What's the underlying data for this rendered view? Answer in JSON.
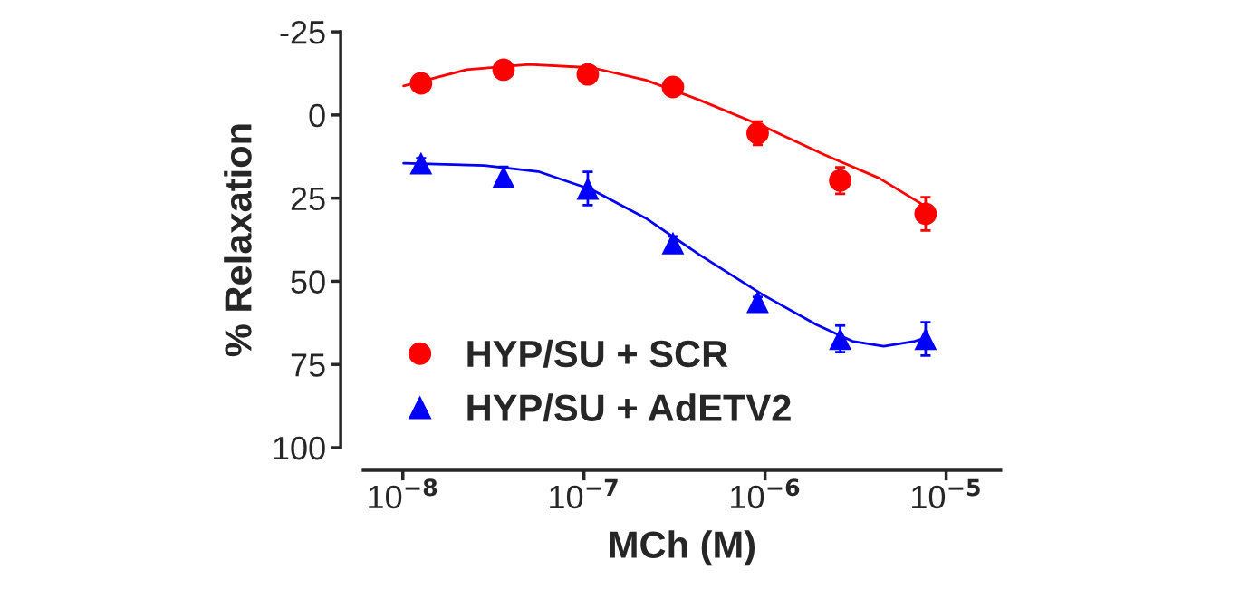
{
  "chart_data": {
    "type": "scatter",
    "xlabel": "MCh (M)",
    "ylabel": "% Relaxation",
    "log": "x",
    "xlim": [
      6.05e-09,
      2e-05
    ],
    "xticks": [
      {
        "value": 1e-08,
        "label": "10$^{−8}$"
      },
      {
        "value": 1e-07,
        "label": "10$^{−7}$"
      },
      {
        "value": 1e-06,
        "label": "10$^{−6}$"
      },
      {
        "value": 1e-05,
        "label": "10$^{−5}$"
      }
    ],
    "ylim": [
      100,
      -25
    ],
    "yticks": [
      -25,
      0,
      25,
      50,
      75,
      100
    ],
    "grid": false,
    "legend": "bottom left",
    "series": [
      {
        "name": "HYP/SU + SCR",
        "color": "#ff0000",
        "marker": "circle",
        "x": [
          1.26e-08,
          3.6e-08,
          1.05e-07,
          3.1e-07,
          9.1e-07,
          2.6e-06,
          7.7e-06
        ],
        "values": [
          -9.5,
          -13.6,
          -12.2,
          -8.4,
          5.5,
          19.7,
          29.7
        ],
        "errors": [
          null,
          null,
          null,
          null,
          3.5,
          4,
          5
        ]
      },
      {
        "name": "HYP/SU + AdETV2",
        "color": "#0000ff",
        "marker": "triangle",
        "x": [
          1.26e-08,
          3.6e-08,
          1.05e-07,
          3.1e-07,
          9.1e-07,
          2.6e-06,
          7.7e-06
        ],
        "values": [
          14.5,
          18.6,
          22.1,
          38.5,
          56.2,
          67.3,
          67.3
        ],
        "errors": [
          1.5,
          3,
          5,
          2,
          1.5,
          4,
          5
        ]
      },
      {
        "type": "line",
        "color": "#ff0000",
        "x": [
          1.01e-08,
          2.25e-08,
          4.98e-08,
          1.11e-07,
          2.19e-07,
          4.34e-07,
          9.68e-07,
          2.14e-06,
          4.27e-06,
          7.7e-06
        ],
        "values": [
          -8.7,
          -13.6,
          -15.2,
          -14.2,
          -10.5,
          -4.5,
          3.3,
          12,
          19,
          27.5
        ]
      },
      {
        "type": "line",
        "color": "#0000ff",
        "x": [
          1.01e-08,
          2.82e-08,
          5.6e-08,
          1.11e-07,
          2.19e-07,
          4.34e-07,
          9.68e-07,
          1.92e-06,
          3.04e-06,
          4.52e-06,
          6.7e-06,
          7.7e-06
        ],
        "values": [
          14.5,
          15.2,
          17,
          22.5,
          31,
          42,
          54,
          63,
          68,
          69.5,
          68,
          67
        ]
      }
    ]
  }
}
